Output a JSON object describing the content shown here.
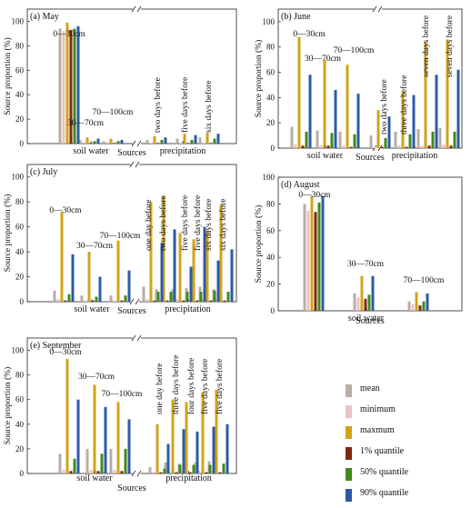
{
  "colors": {
    "mean": "#b9aca6",
    "minimum": "#e8c3c1",
    "maxmum": "#d1a418",
    "q1": "#7e2910",
    "q50": "#3f8a1c",
    "q90": "#2d5aa8"
  },
  "legend": [
    {
      "key": "mean",
      "label": "mean"
    },
    {
      "key": "minimum",
      "label": "minimum"
    },
    {
      "key": "maxmum",
      "label": "maxmum"
    },
    {
      "key": "q1",
      "label": "1% quantile"
    },
    {
      "key": "q50",
      "label": "50% quantile"
    },
    {
      "key": "q90",
      "label": "90% quantile"
    }
  ],
  "chart_data": [
    {
      "type": "bar",
      "title": "(a) May",
      "ylabel": "Source proportion (%)",
      "xlabel": "Sources",
      "ylim": [
        0,
        110
      ],
      "yticks": [
        0,
        20,
        40,
        60,
        80,
        100
      ],
      "axis_break": true,
      "group_labels": [
        {
          "label": "soil water",
          "cats": [
            0,
            2
          ]
        },
        {
          "label": "precipitation",
          "cats": [
            3,
            5
          ]
        }
      ],
      "categories": [
        "0—30cm",
        "30—70cm",
        "70—100cm",
        "two days before",
        "five days before",
        "six days before"
      ],
      "series": [
        {
          "name": "mean",
          "values": [
            94,
            3,
            2,
            3,
            4,
            5
          ]
        },
        {
          "name": "minimum",
          "values": [
            92,
            1,
            1,
            0.5,
            0.5,
            0.5
          ]
        },
        {
          "name": "maxmum",
          "values": [
            99,
            5,
            4,
            6,
            8,
            9
          ]
        },
        {
          "name": "1% quantile",
          "values": [
            93,
            0.5,
            0.5,
            0.5,
            0.5,
            0.5
          ]
        },
        {
          "name": "50% quantile",
          "values": [
            94,
            2,
            2,
            3,
            3,
            4
          ]
        },
        {
          "name": "90% quantile",
          "values": [
            96,
            4,
            3,
            5,
            7,
            8
          ]
        }
      ]
    },
    {
      "type": "bar",
      "title": "(b) June",
      "ylabel": "Source proportion (%)",
      "xlabel": "Sources",
      "ylim": [
        0,
        110
      ],
      "yticks": [
        0,
        20,
        40,
        60,
        80,
        100
      ],
      "axis_break": true,
      "group_labels": [
        {
          "label": "soil water",
          "cats": [
            0,
            2
          ]
        },
        {
          "label": "precipitation",
          "cats": [
            3,
            6
          ]
        }
      ],
      "categories": [
        "0—30cm",
        "30—70cm",
        "70—100cm",
        "two days before",
        "three days before",
        "seven days before",
        "seven days before"
      ],
      "series": [
        {
          "name": "mean",
          "values": [
            17,
            14,
            13,
            10,
            13,
            15,
            16
          ]
        },
        {
          "name": "minimum",
          "values": [
            3,
            2,
            2,
            1,
            2,
            2,
            3
          ]
        },
        {
          "name": "maxmum",
          "values": [
            88,
            70,
            66,
            30,
            45,
            84,
            86
          ]
        },
        {
          "name": "1% quantile",
          "values": [
            2,
            2,
            1,
            1,
            1,
            2,
            2
          ]
        },
        {
          "name": "50% quantile",
          "values": [
            13,
            12,
            11,
            8,
            11,
            13,
            13
          ]
        },
        {
          "name": "90% quantile",
          "values": [
            58,
            46,
            43,
            25,
            42,
            58,
            62
          ]
        }
      ]
    },
    {
      "type": "bar",
      "title": "(c) July",
      "ylabel": "Source proportion (%)",
      "xlabel": "Sources",
      "ylim": [
        0,
        110
      ],
      "yticks": [
        0,
        20,
        40,
        60,
        80,
        100
      ],
      "axis_break": true,
      "group_labels": [
        {
          "label": "soil water",
          "cats": [
            0,
            2
          ]
        },
        {
          "label": "precipitation",
          "cats": [
            3,
            8
          ]
        }
      ],
      "categories": [
        "0—30cm",
        "30—70cm",
        "70—100cm",
        "one day before",
        "two days before",
        "five days before",
        "five days before",
        "six days before",
        "six days before"
      ],
      "series": [
        {
          "name": "mean",
          "values": [
            9,
            5,
            5,
            12,
            10,
            10,
            11,
            12,
            10
          ]
        },
        {
          "name": "minimum",
          "values": [
            2,
            1,
            1,
            2,
            2,
            2,
            2,
            2,
            2
          ]
        },
        {
          "name": "maxmum",
          "values": [
            72,
            40,
            49,
            80,
            85,
            55,
            50,
            57,
            78
          ]
        },
        {
          "name": "1% quantile",
          "values": [
            1,
            1,
            1,
            1,
            1,
            1,
            1,
            1,
            1
          ]
        },
        {
          "name": "50% quantile",
          "values": [
            6,
            4,
            5,
            8,
            8,
            8,
            8,
            9,
            8
          ]
        },
        {
          "name": "90% quantile",
          "values": [
            38,
            20,
            25,
            47,
            58,
            28,
            60,
            33,
            42
          ]
        }
      ]
    },
    {
      "type": "bar",
      "title": "(d) August",
      "ylabel": "Source proportion (%)",
      "xlabel": "Sources",
      "ylim": [
        0,
        100
      ],
      "yticks": [
        0,
        20,
        40,
        60,
        80,
        100
      ],
      "axis_break": false,
      "group_labels": [
        {
          "label": "soil water",
          "cats": [
            0,
            2
          ]
        }
      ],
      "categories": [
        "0—30cm",
        "30—70cm",
        "70—100cm"
      ],
      "series": [
        {
          "name": "mean",
          "values": [
            80,
            13,
            7
          ]
        },
        {
          "name": "minimum",
          "values": [
            75,
            10,
            5
          ]
        },
        {
          "name": "maxmum",
          "values": [
            86,
            26,
            14
          ]
        },
        {
          "name": "1% quantile",
          "values": [
            74,
            9,
            4
          ]
        },
        {
          "name": "50% quantile",
          "values": [
            81,
            12,
            7
          ]
        },
        {
          "name": "90% quantile",
          "values": [
            86,
            26,
            13
          ]
        }
      ]
    },
    {
      "type": "bar",
      "title": "(e) September",
      "ylabel": "Source proportion (%)",
      "xlabel": "Sources",
      "ylim": [
        0,
        110
      ],
      "yticks": [
        0,
        20,
        40,
        60,
        80,
        100
      ],
      "axis_break": true,
      "group_labels": [
        {
          "label": "soil water",
          "cats": [
            0,
            2
          ]
        },
        {
          "label": "precipitation",
          "cats": [
            3,
            7
          ]
        }
      ],
      "categories": [
        "0—30cm",
        "30—70cm",
        "70—100cm",
        "one day before",
        "three days before",
        "four days before",
        "five days before",
        "five days before"
      ],
      "series": [
        {
          "name": "mean",
          "values": [
            16,
            20,
            20,
            5,
            9,
            8,
            9,
            10
          ]
        },
        {
          "name": "minimum",
          "values": [
            3,
            3,
            3,
            1,
            2,
            2,
            2,
            2
          ]
        },
        {
          "name": "maxmum",
          "values": [
            93,
            72,
            58,
            40,
            60,
            58,
            66,
            68
          ]
        },
        {
          "name": "1% quantile",
          "values": [
            2,
            2,
            2,
            1,
            1,
            1,
            1,
            1
          ]
        },
        {
          "name": "50% quantile",
          "values": [
            12,
            16,
            20,
            4,
            7,
            7,
            7,
            8
          ]
        },
        {
          "name": "90% quantile",
          "values": [
            60,
            54,
            44,
            24,
            36,
            34,
            38,
            40
          ]
        }
      ]
    }
  ]
}
